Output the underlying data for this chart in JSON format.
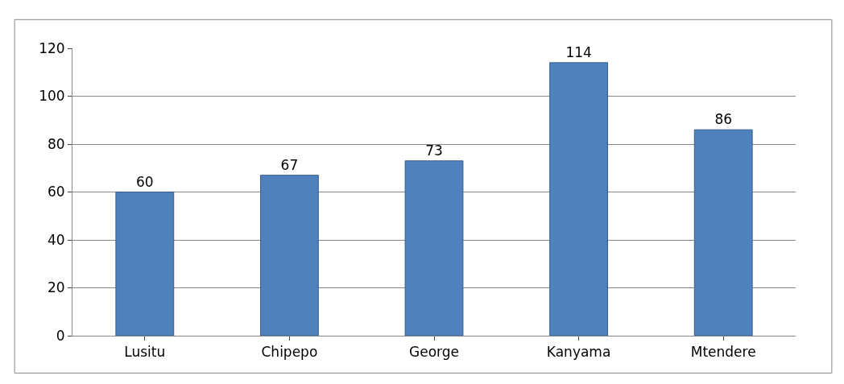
{
  "chart_data": {
    "type": "bar",
    "categories": [
      "Lusitu",
      "Chipepo",
      "George",
      "Kanyama",
      "Mtendere"
    ],
    "values": [
      60,
      67,
      73,
      114,
      86
    ],
    "color": "#4f81bd",
    "ylim": [
      0,
      120
    ],
    "yticks": [
      0,
      20,
      40,
      60,
      80,
      100,
      120
    ],
    "grid": "y",
    "data_labels": true
  }
}
